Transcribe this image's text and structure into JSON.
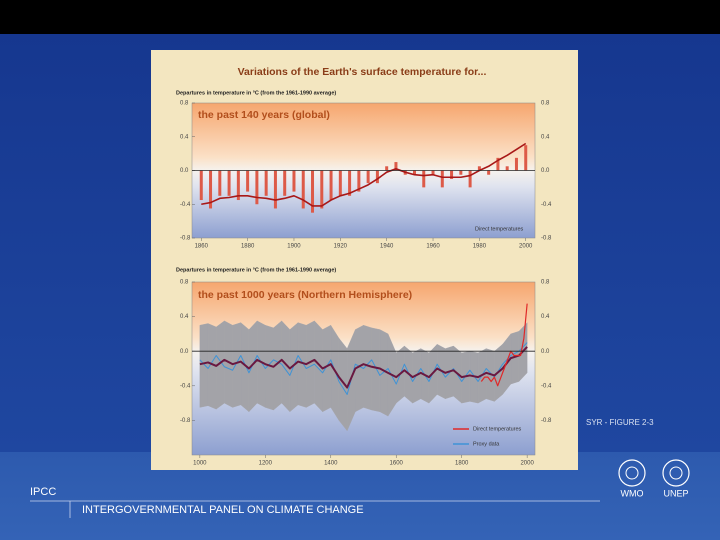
{
  "figure_title": "Variations of the Earth's surface temperature for...",
  "figure_label": "SYR - FIGURE 2-3",
  "footer": {
    "acronym": "IPCC",
    "name": "INTERGOVERNMENTAL PANEL ON CLIMATE CHANGE",
    "logos": [
      "WMO",
      "UNEP"
    ]
  },
  "chart_data": [
    {
      "type": "bar",
      "title": "the past 140 years (global)",
      "ylabel": "Departures in temperature in °C (from the 1961-1990 average)",
      "annotation": "Direct temperatures",
      "x": [
        1860,
        1864,
        1868,
        1872,
        1876,
        1880,
        1884,
        1888,
        1892,
        1896,
        1900,
        1904,
        1908,
        1912,
        1916,
        1920,
        1924,
        1928,
        1932,
        1936,
        1940,
        1944,
        1948,
        1952,
        1956,
        1960,
        1964,
        1968,
        1972,
        1976,
        1980,
        1984,
        1988,
        1992,
        1996,
        2000
      ],
      "series": [
        {
          "color": "#dd5a48",
          "style": "bar",
          "values": [
            -0.35,
            -0.45,
            -0.3,
            -0.3,
            -0.35,
            -0.25,
            -0.4,
            -0.3,
            -0.45,
            -0.3,
            -0.25,
            -0.45,
            -0.5,
            -0.45,
            -0.35,
            -0.3,
            -0.3,
            -0.25,
            -0.15,
            -0.15,
            0.05,
            0.1,
            -0.05,
            -0.05,
            -0.2,
            -0.05,
            -0.2,
            -0.1,
            -0.05,
            -0.2,
            0.05,
            -0.05,
            0.15,
            0.05,
            0.15,
            0.3
          ]
        },
        {
          "color": "#a81818",
          "style": "line",
          "values": [
            -0.4,
            -0.38,
            -0.33,
            -0.32,
            -0.3,
            -0.3,
            -0.32,
            -0.33,
            -0.35,
            -0.33,
            -0.3,
            -0.35,
            -0.42,
            -0.42,
            -0.35,
            -0.3,
            -0.27,
            -0.22,
            -0.17,
            -0.1,
            -0.02,
            0.02,
            -0.02,
            -0.05,
            -0.06,
            -0.05,
            -0.08,
            -0.08,
            -0.08,
            -0.06,
            0.0,
            0.05,
            0.12,
            0.18,
            0.25,
            0.32
          ]
        }
      ],
      "xlim": [
        1856,
        2004
      ],
      "xticks": [
        1860,
        1880,
        1900,
        1920,
        1940,
        1960,
        1980,
        2000
      ],
      "ylim": [
        -0.8,
        0.8
      ],
      "yticks": [
        0.8,
        0.4,
        {
          "value": 0,
          "label": "0.0"
        },
        -0.4,
        -0.8
      ]
    },
    {
      "type": "line",
      "title": "the past 1000 years (Northern Hemisphere)",
      "ylabel": "Departures in temperature in °C (from the 1961-1990 average)",
      "x": [
        1000,
        1025,
        1050,
        1075,
        1100,
        1125,
        1150,
        1175,
        1200,
        1225,
        1250,
        1275,
        1300,
        1325,
        1350,
        1375,
        1400,
        1425,
        1450,
        1475,
        1500,
        1525,
        1550,
        1575,
        1600,
        1625,
        1650,
        1675,
        1700,
        1725,
        1750,
        1775,
        1800,
        1825,
        1850,
        1875,
        1900,
        1925,
        1950,
        1975,
        2000
      ],
      "band": {
        "color": "#a3a3a8",
        "lower": [
          -0.65,
          -0.63,
          -0.67,
          -0.6,
          -0.65,
          -0.62,
          -0.7,
          -0.6,
          -0.65,
          -0.68,
          -0.6,
          -0.7,
          -0.62,
          -0.65,
          -0.6,
          -0.7,
          -0.65,
          -0.8,
          -0.92,
          -0.7,
          -0.65,
          -0.68,
          -0.7,
          -0.75,
          -0.6,
          -0.52,
          -0.6,
          -0.55,
          -0.6,
          -0.5,
          -0.55,
          -0.52,
          -0.6,
          -0.58,
          -0.6,
          -0.55,
          -0.58,
          -0.5,
          -0.38,
          -0.35,
          -0.25
        ],
        "upper": [
          0.3,
          0.32,
          0.28,
          0.35,
          0.3,
          0.33,
          0.25,
          0.35,
          0.3,
          0.27,
          0.35,
          0.25,
          0.33,
          0.3,
          0.35,
          0.25,
          0.3,
          0.15,
          0.03,
          0.25,
          0.3,
          0.27,
          0.25,
          0.2,
          -0.02,
          0.06,
          -0.02,
          0.03,
          -0.02,
          0.08,
          0.03,
          0.06,
          -0.02,
          0.0,
          -0.02,
          0.03,
          0.0,
          0.08,
          0.2,
          0.23,
          0.33
        ]
      },
      "series": [
        {
          "name": "Proxy data",
          "color": "#3f93d6",
          "width": 1,
          "values": [
            -0.1,
            -0.2,
            -0.05,
            -0.18,
            -0.22,
            -0.05,
            -0.25,
            -0.05,
            -0.2,
            -0.1,
            -0.15,
            -0.28,
            -0.05,
            -0.2,
            -0.15,
            -0.25,
            -0.1,
            -0.35,
            -0.5,
            -0.15,
            -0.2,
            -0.1,
            -0.28,
            -0.2,
            -0.38,
            -0.15,
            -0.35,
            -0.2,
            -0.35,
            -0.15,
            -0.3,
            -0.2,
            -0.35,
            -0.22,
            -0.35,
            -0.2,
            -0.3,
            -0.15,
            -0.05,
            0.0,
            0.1
          ]
        },
        {
          "color": "#6a1840",
          "width": 2,
          "values": [
            -0.15,
            -0.13,
            -0.17,
            -0.1,
            -0.15,
            -0.12,
            -0.2,
            -0.1,
            -0.15,
            -0.18,
            -0.1,
            -0.2,
            -0.12,
            -0.15,
            -0.1,
            -0.2,
            -0.15,
            -0.3,
            -0.42,
            -0.2,
            -0.15,
            -0.18,
            -0.2,
            -0.25,
            -0.3,
            -0.22,
            -0.3,
            -0.25,
            -0.3,
            -0.2,
            -0.25,
            -0.22,
            -0.3,
            -0.28,
            -0.3,
            -0.25,
            -0.28,
            -0.2,
            -0.08,
            -0.05,
            0.05
          ]
        },
        {
          "name": "Direct temperatures",
          "color": "#e02828",
          "width": 1.2,
          "x": [
            1860,
            1870,
            1880,
            1890,
            1900,
            1910,
            1920,
            1930,
            1940,
            1950,
            1960,
            1970,
            1980,
            1990,
            2000
          ],
          "values": [
            -0.35,
            -0.3,
            -0.3,
            -0.35,
            -0.3,
            -0.4,
            -0.3,
            -0.2,
            -0.1,
            0.0,
            -0.05,
            -0.05,
            -0.05,
            0.15,
            0.55
          ]
        }
      ],
      "legend": "lower right",
      "xlim": [
        976,
        2024
      ],
      "xticks": [
        1000,
        1200,
        1400,
        1600,
        1800,
        2000
      ],
      "ylim": [
        -1.2,
        0.8
      ],
      "yticks": [
        0.8,
        0.4,
        {
          "value": 0,
          "label": "0.0"
        },
        -0.4,
        -0.8
      ]
    }
  ]
}
